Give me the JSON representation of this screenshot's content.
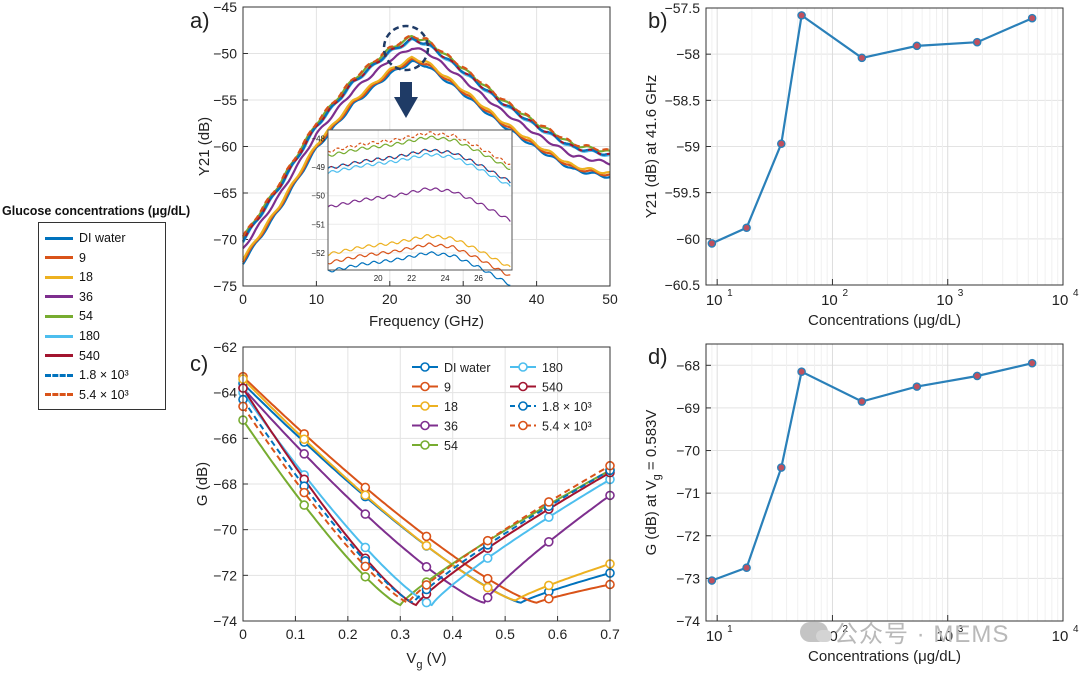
{
  "colors": {
    "c1": "#0072BD",
    "c2": "#D95319",
    "c3": "#EDB120",
    "c4": "#7E2F8E",
    "c5": "#77AC30",
    "c6": "#4DBEEE",
    "c7": "#A2142F"
  },
  "legend": {
    "title": "Glucose concentrations (μg/dL)",
    "items": [
      {
        "label": "DI water",
        "color": "#0072BD",
        "dashed": false
      },
      {
        "label": "9",
        "color": "#D95319",
        "dashed": false
      },
      {
        "label": "18",
        "color": "#EDB120",
        "dashed": false
      },
      {
        "label": "36",
        "color": "#7E2F8E",
        "dashed": false
      },
      {
        "label": "54",
        "color": "#77AC30",
        "dashed": false
      },
      {
        "label": "180",
        "color": "#4DBEEE",
        "dashed": false
      },
      {
        "label": "540",
        "color": "#A2142F",
        "dashed": false
      },
      {
        "label": "1.8 × 10³",
        "color": "#0072BD",
        "dashed": true
      },
      {
        "label": "5.4 × 10³",
        "color": "#D95319",
        "dashed": true
      }
    ]
  },
  "panel_labels": {
    "a": "a)",
    "b": "b)",
    "c": "c)",
    "d": "d)"
  },
  "watermark": "公众号 · MEMS",
  "chart_data": [
    {
      "id": "a",
      "type": "line",
      "title": "",
      "xlabel": "Frequency (GHz)",
      "ylabel": "Y21 (dB)",
      "xlim": [
        0,
        50
      ],
      "ylim": [
        -75,
        -45
      ],
      "xticks": [
        0,
        10,
        20,
        30,
        40,
        50
      ],
      "yticks": [
        -75,
        -70,
        -65,
        -60,
        -55,
        -50,
        -45
      ],
      "series": [
        {
          "name": "DI water",
          "color": "#0072BD",
          "dashed": false,
          "offset": -2.7
        },
        {
          "name": "9",
          "color": "#D95319",
          "dashed": false,
          "offset": -2.5
        },
        {
          "name": "18",
          "color": "#EDB120",
          "dashed": false,
          "offset": -2.3
        },
        {
          "name": "36",
          "color": "#7E2F8E",
          "dashed": false,
          "offset": -1.2
        },
        {
          "name": "54",
          "color": "#77AC30",
          "dashed": false,
          "offset": 0.0
        },
        {
          "name": "180",
          "color": "#4DBEEE",
          "dashed": false,
          "offset": -0.4
        },
        {
          "name": "540",
          "color": "#A2142F",
          "dashed": false,
          "offset": -0.3
        },
        {
          "name": "1.8 × 10³",
          "color": "#0072BD",
          "dashed": true,
          "offset": -0.3
        },
        {
          "name": "5.4 × 10³",
          "color": "#D95319",
          "dashed": true,
          "offset": 0.1
        }
      ],
      "base_curve": {
        "x": [
          0,
          5,
          10,
          15,
          20,
          23,
          25,
          30,
          35,
          40,
          45,
          50
        ],
        "y": [
          -69.8,
          -64.0,
          -57.5,
          -52.8,
          -49.5,
          -48.2,
          -48.6,
          -51.6,
          -54.8,
          -57.5,
          -59.8,
          -60.6
        ]
      },
      "inset": {
        "xlim": [
          17,
          28
        ],
        "ylim": [
          -52.6,
          -47.7
        ],
        "xticks": [
          20,
          22,
          24,
          26
        ],
        "yticks": [
          -52,
          -51,
          -50,
          -49,
          -48
        ],
        "base_x": [
          17,
          19,
          21,
          23,
          24.5,
          26,
          28
        ],
        "base_y": [
          -48.6,
          -48.35,
          -48.2,
          -47.95,
          -48.05,
          -48.45,
          -49.1
        ]
      }
    },
    {
      "id": "b",
      "type": "line",
      "xscale": "log",
      "xlabel": "Concentrations (μg/dL)",
      "ylabel": "Y21 (dB) at 41.6 GHz",
      "xlim": [
        8,
        10000
      ],
      "ylim": [
        -60.5,
        -57.5
      ],
      "yticks": [
        -60.5,
        -60,
        -59.5,
        -59,
        -58.5,
        -58,
        -57.5
      ],
      "xtick_exps": [
        "1",
        "2",
        "3",
        "4"
      ],
      "x": [
        9,
        18,
        36,
        54,
        180,
        540,
        1800,
        5400
      ],
      "y": [
        -60.05,
        -59.88,
        -58.97,
        -57.58,
        -58.04,
        -57.91,
        -57.87,
        -57.61
      ]
    },
    {
      "id": "c",
      "type": "line",
      "xlabel": "V",
      "xlabel_sub": "g",
      "xlabel_unit": " (V)",
      "ylabel": "G (dB)",
      "xlim": [
        0,
        0.7
      ],
      "ylim": [
        -74,
        -62
      ],
      "xticks": [
        0,
        0.1,
        0.2,
        0.3,
        0.4,
        0.5,
        0.6,
        0.7
      ],
      "yticks": [
        -74,
        -72,
        -70,
        -68,
        -66,
        -64,
        -62
      ],
      "marker_x": [
        0,
        0.1167,
        0.2333,
        0.35,
        0.4667,
        0.5833,
        0.7
      ],
      "series": [
        {
          "name": "DI water",
          "color": "#0072BD",
          "dashed": false,
          "vmin": 0.53,
          "gmin": -73.2,
          "g0": -63.6,
          "g7": -71.9
        },
        {
          "name": "9",
          "color": "#D95319",
          "dashed": false,
          "vmin": 0.56,
          "gmin": -73.2,
          "g0": -63.3,
          "g7": -72.4
        },
        {
          "name": "18",
          "color": "#EDB120",
          "dashed": false,
          "vmin": 0.52,
          "gmin": -73.1,
          "g0": -63.4,
          "g7": -71.5
        },
        {
          "name": "36",
          "color": "#7E2F8E",
          "dashed": false,
          "vmin": 0.46,
          "gmin": -73.2,
          "g0": -63.8,
          "g7": -68.5
        },
        {
          "name": "54",
          "color": "#77AC30",
          "dashed": false,
          "vmin": 0.3,
          "gmin": -73.3,
          "g0": -65.2,
          "g7": -67.4
        },
        {
          "name": "180",
          "color": "#4DBEEE",
          "dashed": false,
          "vmin": 0.36,
          "gmin": -73.3,
          "g0": -64.0,
          "g7": -67.8
        },
        {
          "name": "540",
          "color": "#A2142F",
          "dashed": false,
          "vmin": 0.33,
          "gmin": -73.3,
          "g0": -63.8,
          "g7": -67.5
        },
        {
          "name": "1.8 × 10³",
          "color": "#0072BD",
          "dashed": true,
          "vmin": 0.325,
          "gmin": -73.2,
          "g0": -64.3,
          "g7": -67.4
        },
        {
          "name": "5.4 × 10³",
          "color": "#D95319",
          "dashed": true,
          "vmin": 0.315,
          "gmin": -73.2,
          "g0": -64.6,
          "g7": -67.2
        }
      ],
      "legend_items": [
        {
          "label": "DI water",
          "color": "#0072BD",
          "dashed": false
        },
        {
          "label": "9",
          "color": "#D95319",
          "dashed": false
        },
        {
          "label": "18",
          "color": "#EDB120",
          "dashed": false
        },
        {
          "label": "36",
          "color": "#7E2F8E",
          "dashed": false
        },
        {
          "label": "54",
          "color": "#77AC30",
          "dashed": false
        },
        {
          "label": "180",
          "color": "#4DBEEE",
          "dashed": false
        },
        {
          "label": "540",
          "color": "#A2142F",
          "dashed": false
        },
        {
          "label": "1.8 × 10³",
          "color": "#0072BD",
          "dashed": true
        },
        {
          "label": "5.4 × 10³",
          "color": "#D95319",
          "dashed": true
        }
      ]
    },
    {
      "id": "d",
      "type": "line",
      "xscale": "log",
      "xlabel": "Concentrations (μg/dL)",
      "ylabel_main": "G (dB) at V",
      "ylabel_sub": "g",
      "ylabel_tail": " = 0.583V",
      "xlim": [
        8,
        10000
      ],
      "ylim": [
        -74,
        -67.5
      ],
      "yticks": [
        -74,
        -73,
        -72,
        -71,
        -70,
        -69,
        -68
      ],
      "xtick_exps": [
        "1",
        "2",
        "3",
        "4"
      ],
      "x": [
        9,
        18,
        36,
        54,
        180,
        540,
        1800,
        5400
      ],
      "y": [
        -73.05,
        -72.75,
        -70.4,
        -68.15,
        -68.85,
        -68.5,
        -68.25,
        -67.95
      ]
    }
  ]
}
